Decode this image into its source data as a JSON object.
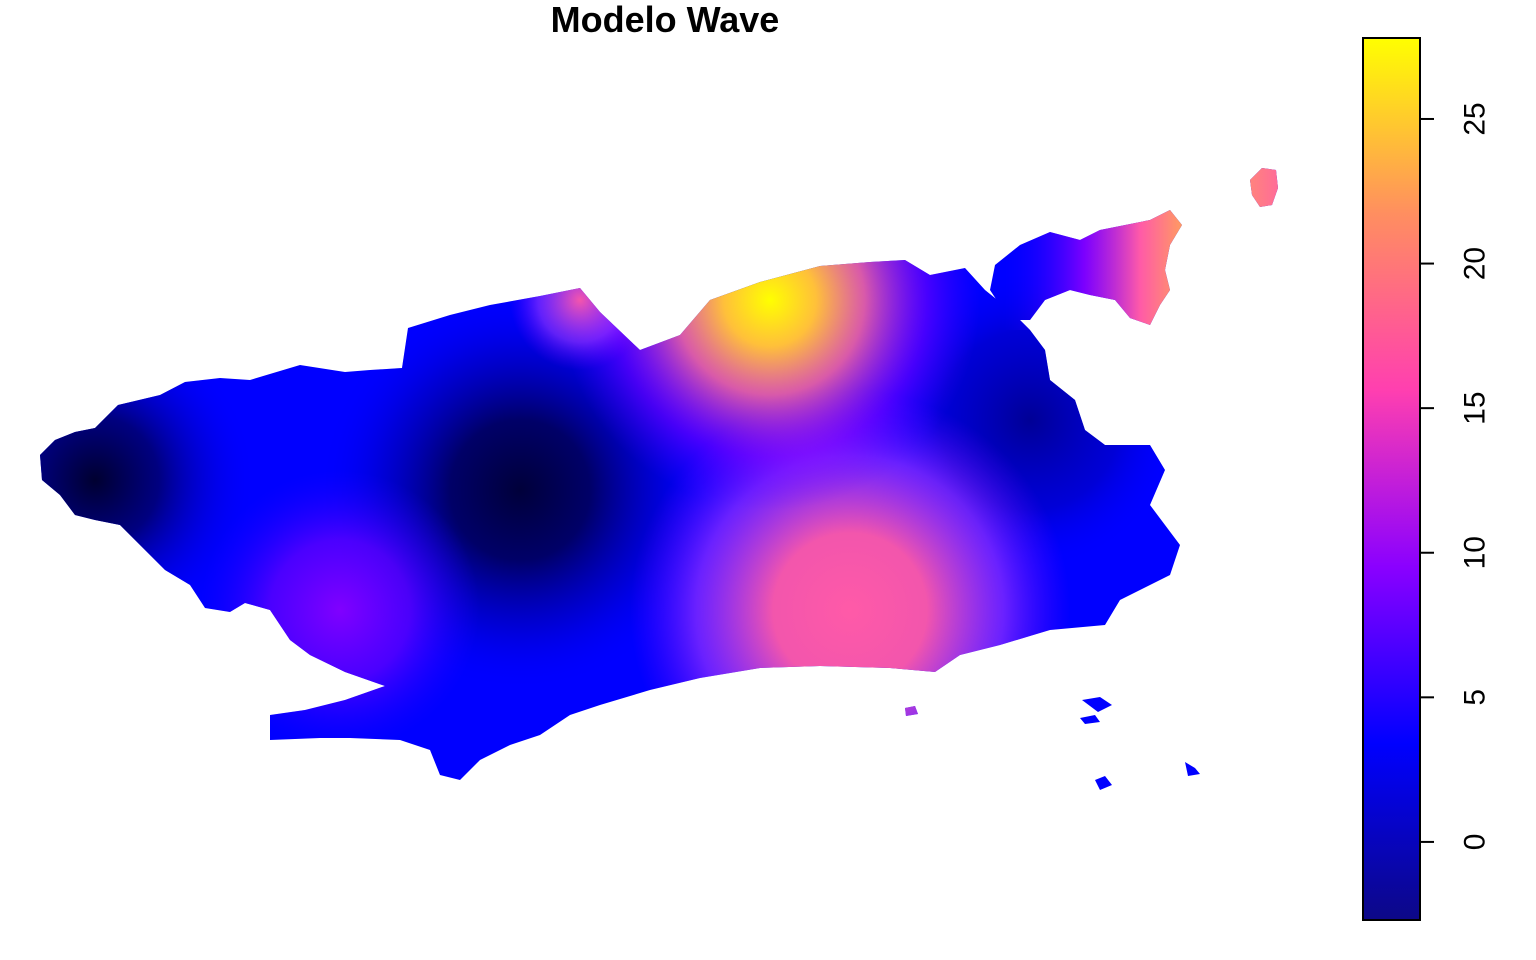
{
  "title": "Modelo Wave",
  "legend": {
    "min": -2.7,
    "max": 27.8,
    "ticks": [
      {
        "value": 0,
        "label": "0"
      },
      {
        "value": 5,
        "label": "5"
      },
      {
        "value": 10,
        "label": "10"
      },
      {
        "value": 15,
        "label": "15"
      },
      {
        "value": 20,
        "label": "20"
      },
      {
        "value": 25,
        "label": "25"
      }
    ],
    "palette": "plasma",
    "colors": [
      "#0d0887",
      "#0000ff",
      "#8a00ff",
      "#ff3fb0",
      "#ff8e60",
      "#ffff00"
    ]
  }
}
